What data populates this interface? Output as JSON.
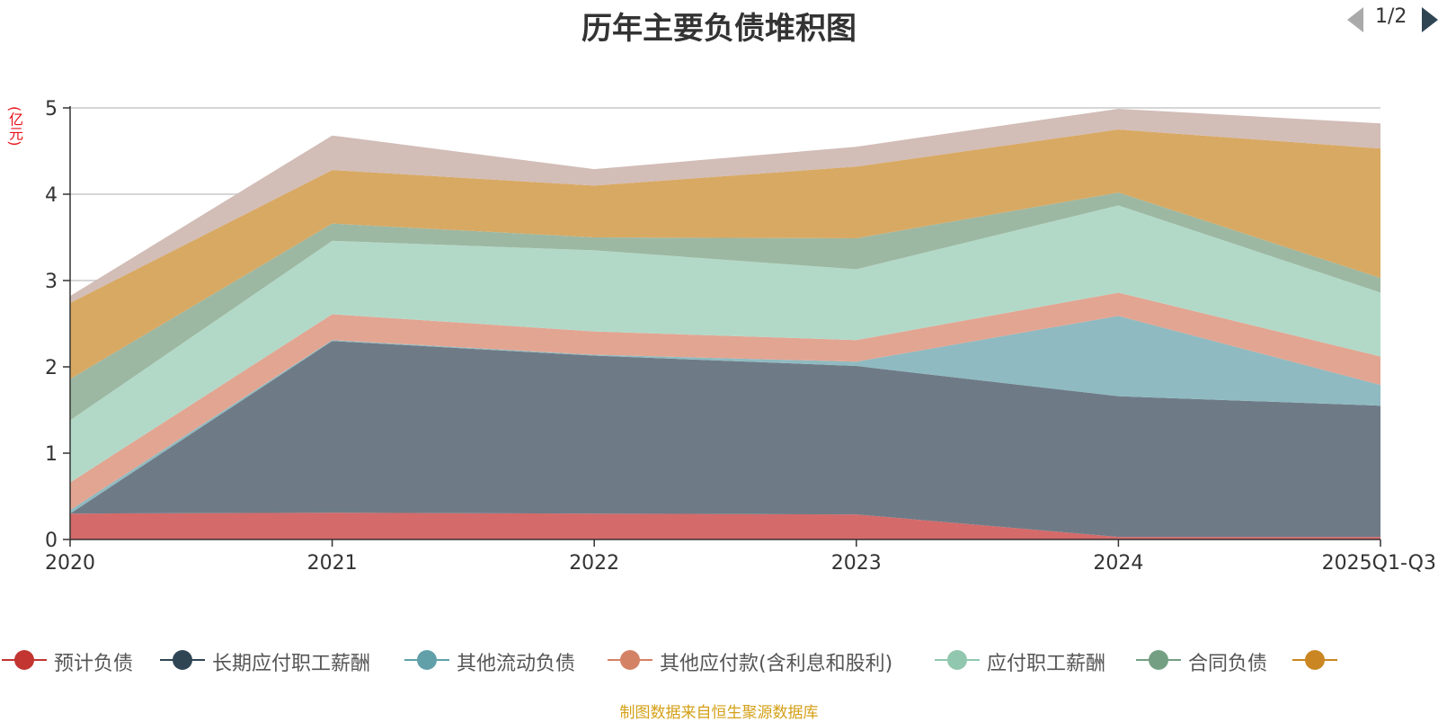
{
  "chart_data": {
    "type": "area",
    "stacked": true,
    "title": "历年主要负债堆积图",
    "y_unit": "(亿元)",
    "categories": [
      "2020",
      "2021",
      "2022",
      "2023",
      "2024",
      "2025Q1-Q3"
    ],
    "ylim": [
      0,
      5
    ],
    "yticks": [
      0,
      1,
      2,
      3,
      4,
      5
    ],
    "grid": true,
    "series": [
      {
        "name": "预计负债",
        "color": "#d46a6a",
        "legend_color": "#c23531",
        "values": [
          0.3,
          0.31,
          0.3,
          0.29,
          0.03,
          0.03
        ]
      },
      {
        "name": "长期应付职工薪酬",
        "color": "#6e7b87",
        "legend_color": "#2f4554",
        "values": [
          0.0,
          1.99,
          1.83,
          1.72,
          1.63,
          1.52
        ]
      },
      {
        "name": "其他流动负债",
        "color": "#8fbac1",
        "legend_color": "#61a0a8",
        "values": [
          0.04,
          0.01,
          0.01,
          0.05,
          0.93,
          0.24
        ]
      },
      {
        "name": "其他应付款(含利息和股利)",
        "color": "#e2a592",
        "legend_color": "#d48265",
        "values": [
          0.32,
          0.3,
          0.27,
          0.25,
          0.27,
          0.33
        ]
      },
      {
        "name": "应付职工薪酬",
        "color": "#b2d9c8",
        "legend_color": "#91c7ae",
        "values": [
          0.72,
          0.85,
          0.94,
          0.82,
          1.01,
          0.74
        ]
      },
      {
        "name": "合同负债",
        "color": "#9db8a2",
        "legend_color": "#749f83",
        "values": [
          0.48,
          0.2,
          0.15,
          0.36,
          0.15,
          0.17
        ]
      },
      {
        "name": "",
        "color": "#d8a963",
        "legend_color": "#ca8622",
        "values": [
          0.88,
          0.62,
          0.6,
          0.83,
          0.73,
          1.5
        ]
      },
      {
        "name": "",
        "color": "#d2bdb7",
        "legend_color": "#bda29a",
        "values": [
          0.08,
          0.4,
          0.19,
          0.23,
          0.24,
          0.29
        ]
      }
    ],
    "legend_placement": "bottom",
    "legend_page": "1/2"
  },
  "source_note": "制图数据来自恒生聚源数据库"
}
